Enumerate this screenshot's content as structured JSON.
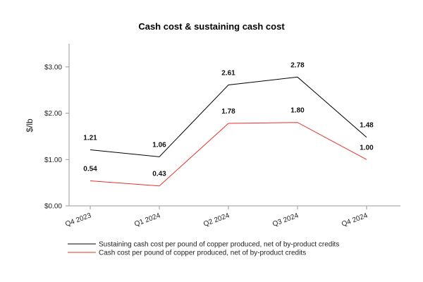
{
  "chart_data": {
    "type": "line",
    "title": "Cash cost & sustaining cash cost",
    "xlabel": "",
    "ylabel": "$/lb",
    "categories": [
      "Q4 2023",
      "Q1 2024",
      "Q2 2024",
      "Q3 2024",
      "Q4 2024"
    ],
    "ylim": [
      0,
      3.5
    ],
    "yticks": [
      0,
      1,
      2,
      3
    ],
    "ytick_labels": [
      "$0.00",
      "$1.00",
      "$2.00",
      "$3.00"
    ],
    "grid": false,
    "legend_position": "bottom",
    "series": [
      {
        "name": "Sustaining cash cost per pound of copper produced, net of by-product credits",
        "color": "#000000",
        "values": [
          1.21,
          1.06,
          2.61,
          2.78,
          1.48
        ],
        "labels": [
          "1.21",
          "1.06",
          "2.61",
          "2.78",
          "1.48"
        ]
      },
      {
        "name": "Cash cost per pound of copper produced, net of by-product credits",
        "color": "#e8302a",
        "values": [
          0.54,
          0.43,
          1.78,
          1.8,
          1.0
        ],
        "labels": [
          "0.54",
          "0.43",
          "1.78",
          "1.80",
          "1.00"
        ]
      }
    ]
  }
}
